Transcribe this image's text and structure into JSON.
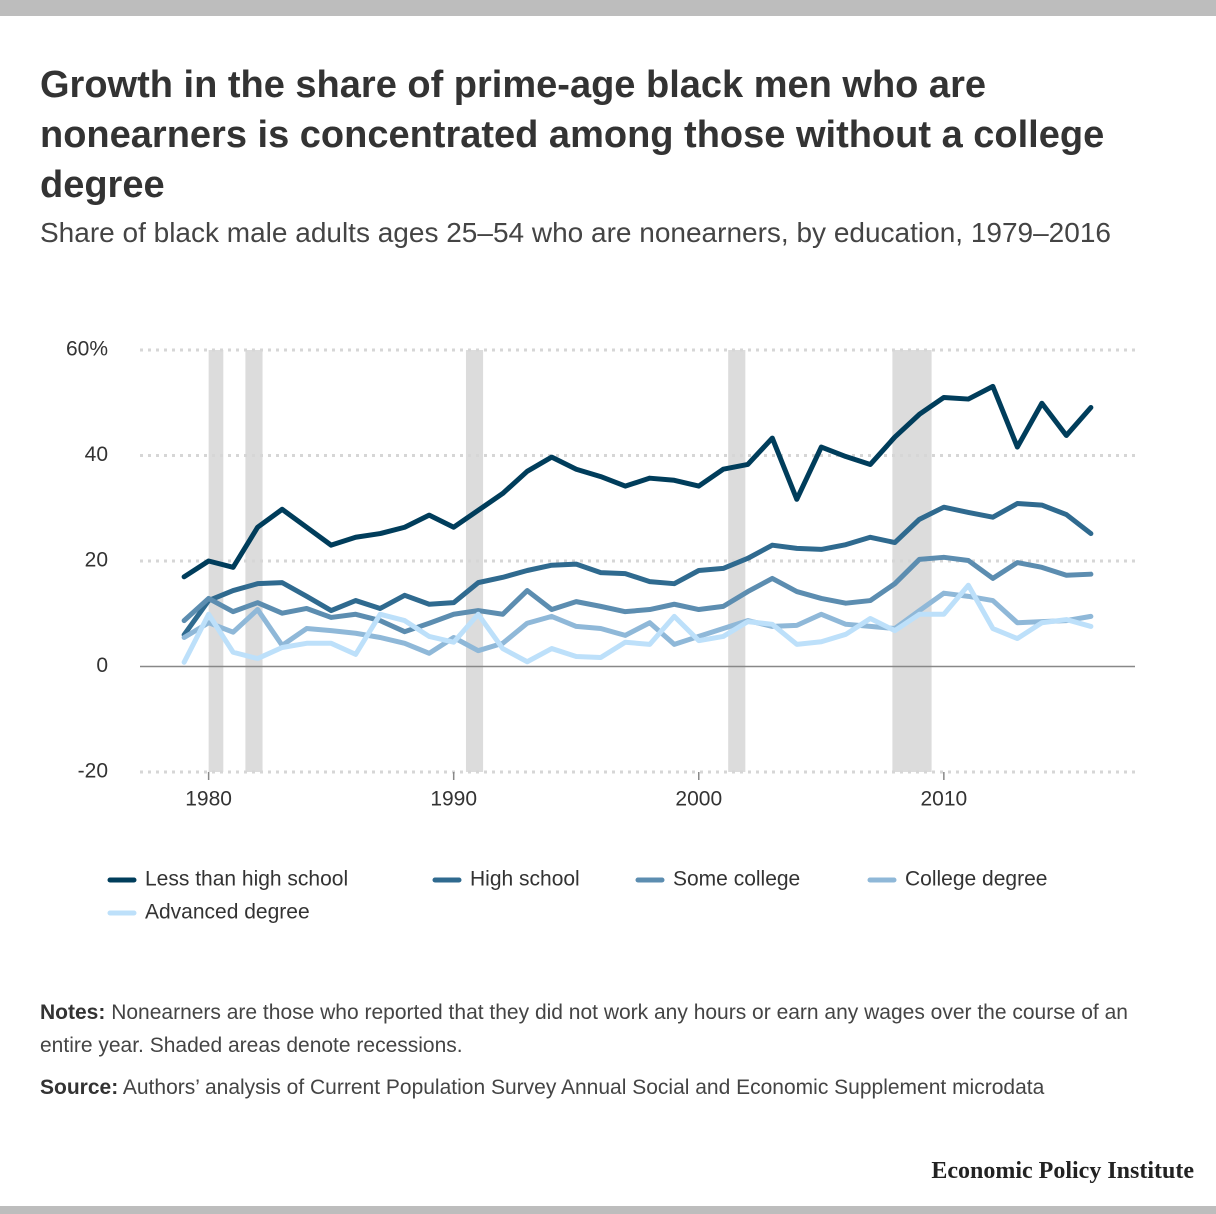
{
  "chart_data": {
    "type": "line",
    "title": "Growth in the share of prime-age black men who are nonearners is concentrated among those without a college degree",
    "subtitle": "Share of black male adults ages 25–54 who are nonearners, by education, 1979–2016",
    "x": [
      1979,
      1980,
      1981,
      1982,
      1983,
      1984,
      1985,
      1986,
      1987,
      1988,
      1989,
      1990,
      1991,
      1992,
      1993,
      1994,
      1995,
      1996,
      1997,
      1998,
      1999,
      2000,
      2001,
      2002,
      2003,
      2004,
      2005,
      2006,
      2007,
      2008,
      2009,
      2010,
      2011,
      2012,
      2013,
      2014,
      2015,
      2016
    ],
    "series": [
      {
        "name": "Less than high school",
        "color": "#003d5b",
        "values": [
          17,
          20,
          18.8,
          26.4,
          29.8,
          26.4,
          23,
          24.5,
          25.2,
          26.4,
          28.7,
          26.4,
          29.6,
          32.8,
          37,
          39.7,
          37.4,
          36,
          34.2,
          35.7,
          35.3,
          34.2,
          37.4,
          38.3,
          43.3,
          31.7,
          41.6,
          39.8,
          38.3,
          43.5,
          47.8,
          51,
          50.7,
          53.1,
          41.6,
          49.9,
          43.8,
          49.1
        ]
      },
      {
        "name": "High school",
        "color": "#2f6a8f",
        "values": [
          6,
          12.5,
          14.4,
          15.7,
          15.9,
          13.3,
          10.6,
          12.5,
          11,
          13.5,
          11.8,
          12.1,
          15.9,
          16.9,
          18.2,
          19.2,
          19.4,
          17.8,
          17.6,
          16.1,
          15.7,
          18.2,
          18.6,
          20.5,
          23,
          22.4,
          22.2,
          23.1,
          24.5,
          23.5,
          27.9,
          30.2,
          29.2,
          28.3,
          30.9,
          30.6,
          28.8,
          25.2
        ]
      },
      {
        "name": "Some college",
        "color": "#5c8db0",
        "values": [
          8.7,
          12.9,
          10.4,
          12.1,
          10.1,
          11,
          9.3,
          9.9,
          8.7,
          6.6,
          8.2,
          9.9,
          10.6,
          9.9,
          14.4,
          10.8,
          12.3,
          11.4,
          10.4,
          10.8,
          11.8,
          10.8,
          11.4,
          14.2,
          16.7,
          14.2,
          12.9,
          12,
          12.5,
          15.7,
          20.3,
          20.7,
          20.1,
          16.7,
          19.7,
          18.8,
          17.3,
          17.5
        ]
      },
      {
        "name": "College degree",
        "color": "#8fb8d8",
        "values": [
          5.5,
          8.3,
          6.5,
          10.8,
          4,
          7.2,
          6.8,
          6.3,
          5.5,
          4.4,
          2.5,
          5.5,
          3,
          4.4,
          8.2,
          9.5,
          7.6,
          7.2,
          5.9,
          8.3,
          4.2,
          5.7,
          7.2,
          8.7,
          7.6,
          7.8,
          9.9,
          8,
          7.6,
          7.2,
          10.6,
          13.9,
          13.3,
          12.5,
          8.3,
          8.5,
          8.7,
          9.5
        ]
      },
      {
        "name": "Advanced degree",
        "color": "#bde0fa",
        "values": [
          0.8,
          9.9,
          2.7,
          1.5,
          3.6,
          4.4,
          4.4,
          2.3,
          9.9,
          8.7,
          5.7,
          4.6,
          9.9,
          3.4,
          0.9,
          3.4,
          1.9,
          1.7,
          4.6,
          4.2,
          9.5,
          4.9,
          5.7,
          8.5,
          8,
          4.2,
          4.7,
          6.1,
          9.1,
          6.8,
          9.9,
          9.9,
          15.4,
          7.2,
          5.3,
          8.3,
          8.9,
          7.6
        ]
      }
    ],
    "recessions": [
      [
        1980,
        1980.6
      ],
      [
        1981.5,
        1982.2
      ],
      [
        1990.5,
        1991.2
      ],
      [
        2001.2,
        2001.9
      ],
      [
        2007.9,
        2009.5
      ]
    ],
    "xlim": [
      1977.2,
      2017.8
    ],
    "xticks": [
      1980,
      1990,
      2000,
      2010
    ],
    "ylim": [
      -20,
      60
    ],
    "yticks": [
      {
        "value": 60,
        "label": "60%"
      },
      40,
      20,
      0,
      -20
    ],
    "grid": true,
    "legend": "bottom",
    "notes": {
      "label": "Notes:",
      "text": "Nonearners are those who reported that they did not work any hours or earn any wages over the course of an entire year. Shaded areas denote recessions."
    },
    "source": {
      "label": "Source:",
      "text": "Authors’ analysis of Current Population Survey Annual Social and Economic Supplement microdata"
    },
    "brand": "Economic Policy Institute"
  }
}
